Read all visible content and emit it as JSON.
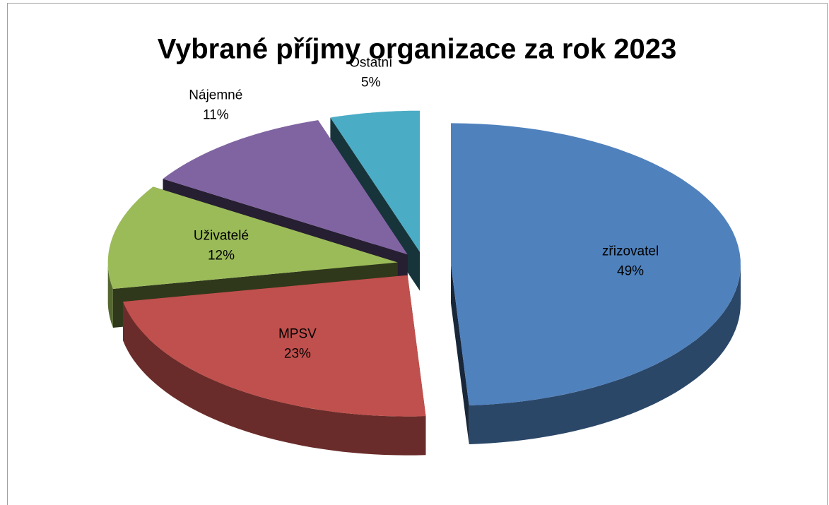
{
  "chart_data": {
    "type": "pie3d",
    "title": "Vybrané příjmy organizace za rok 2023",
    "categories": [
      "zřizovatel",
      "MPSV",
      "Uživatelé",
      "Nájemné",
      "Ostatní"
    ],
    "values": [
      49,
      23,
      12,
      11,
      5
    ],
    "value_labels": [
      "49%",
      "23%",
      "12%",
      "11%",
      "5%"
    ],
    "colors": [
      "#4f81bd",
      "#c0504d",
      "#9bbb59",
      "#8064a2",
      "#4bacc6"
    ],
    "exploded": true
  }
}
